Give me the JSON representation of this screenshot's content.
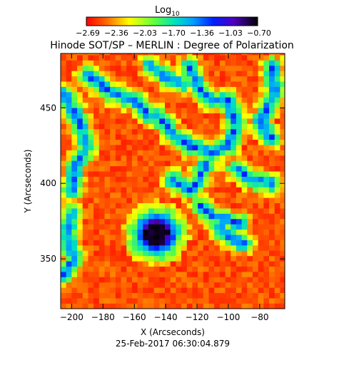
{
  "colorbar": {
    "label_main": "Log",
    "label_sub": "10",
    "ticks": [
      "−2.69",
      "−2.36",
      "−2.03",
      "−1.70",
      "−1.36",
      "−1.03",
      "−0.70"
    ]
  },
  "title": "Hinode SOT/SP – MERLIN : Degree of Polarization",
  "footer": "25-Feb-2017 06:30:04.879",
  "chart_data": {
    "type": "heatmap",
    "title": "Hinode SOT/SP – MERLIN : Degree of Polarization",
    "xlabel": "X (Arcseconds)",
    "ylabel": "Y (Arcseconds)",
    "xlim": [
      -207,
      -64
    ],
    "ylim": [
      317,
      486
    ],
    "x_ticks": [
      -200,
      -180,
      -160,
      -140,
      -120,
      -100,
      -80
    ],
    "y_ticks": [
      350,
      400,
      450
    ],
    "colorbar_label": "Log10",
    "colorbar_range": [
      -2.69,
      -0.7
    ],
    "colormap": "rainbow (red = low, violet/black = high)",
    "features": {
      "sunspot_center": [
        -146,
        367
      ],
      "umbra_value": -0.7,
      "background_value": -2.6
    }
  }
}
